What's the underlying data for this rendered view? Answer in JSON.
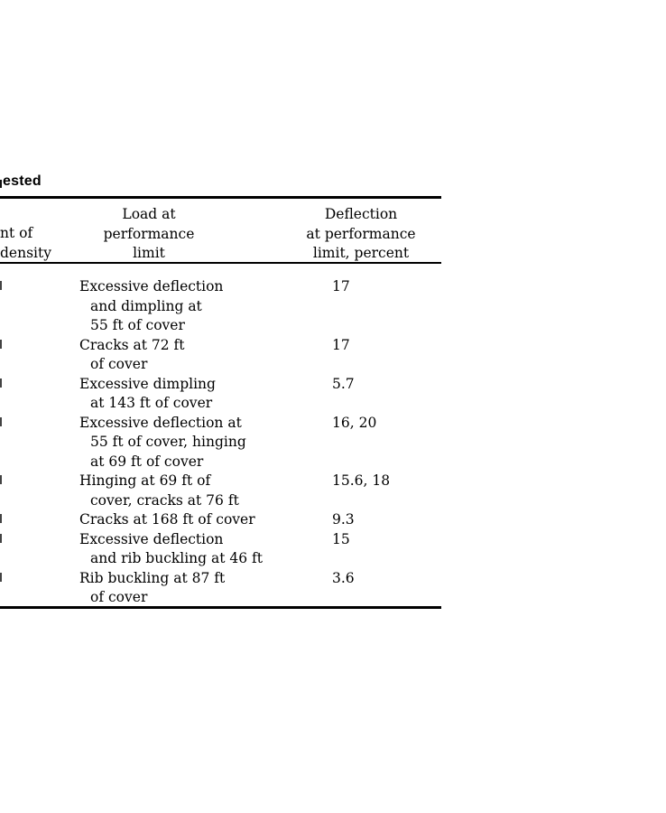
{
  "title_fragment": "ested",
  "colors": {
    "text": "#000000",
    "rule": "#000000",
    "background": "#ffffff"
  },
  "table": {
    "header": {
      "stub_lines": [
        "nt of",
        "density"
      ],
      "load_col_lines": [
        "Load at",
        "performance",
        "limit"
      ],
      "deflection_col_lines": [
        "Deflection",
        "at performance",
        "limit, percent"
      ]
    },
    "rows": [
      {
        "load_lines": [
          "Excessive deflection",
          "and dimpling at",
          "55 ft of cover"
        ],
        "deflection": "17"
      },
      {
        "load_lines": [
          "Cracks at 72 ft",
          "of cover"
        ],
        "deflection": "17"
      },
      {
        "load_lines": [
          "Excessive dimpling",
          "at 143 ft of cover"
        ],
        "deflection": "5.7"
      },
      {
        "load_lines": [
          "Excessive deflection at",
          "55 ft of cover, hinging",
          "at 69 ft of cover"
        ],
        "deflection": "16, 20"
      },
      {
        "load_lines": [
          "Hinging at 69 ft of",
          "cover, cracks at 76 ft"
        ],
        "deflection": "15.6, 18"
      },
      {
        "load_lines": [
          "Cracks at 168 ft of cover"
        ],
        "deflection": "9.3"
      },
      {
        "load_lines": [
          "Excessive deflection",
          "and rib buckling at 46 ft"
        ],
        "deflection": "15"
      },
      {
        "load_lines": [
          "Rib buckling at 87 ft",
          "of cover"
        ],
        "deflection": "3.6"
      }
    ]
  }
}
